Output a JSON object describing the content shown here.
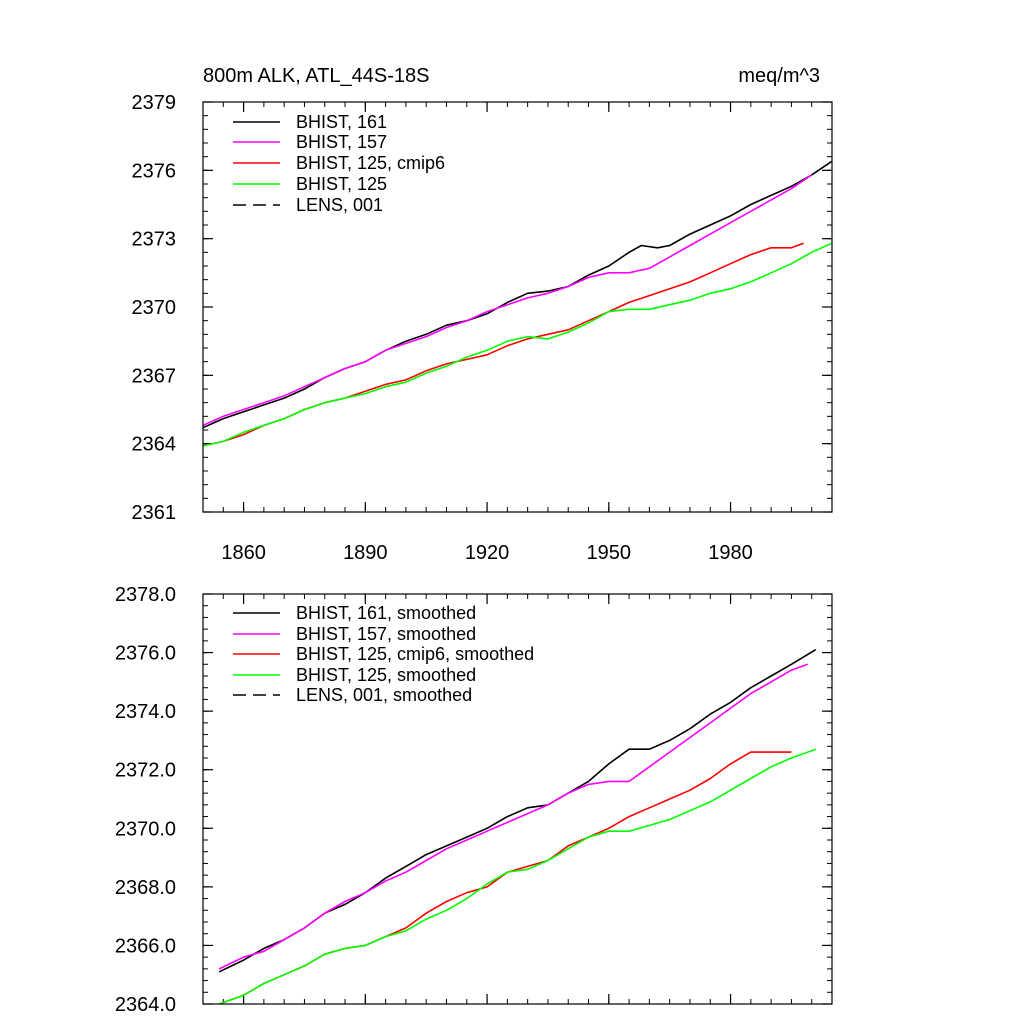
{
  "chart_data": [
    {
      "type": "line",
      "title_left": "800m ALK, ATL_44S-18S",
      "title_right": "meq/m^3",
      "xlim": [
        1850,
        2005
      ],
      "ylim": [
        2361,
        2379
      ],
      "xticks": [
        1860,
        1890,
        1920,
        1950,
        1980
      ],
      "xtick_labels": [
        "1860",
        "1890",
        "1920",
        "1950",
        "1980"
      ],
      "yticks": [
        2361,
        2364,
        2367,
        2370,
        2373,
        2376,
        2379
      ],
      "ytick_labels": [
        "2361",
        "2364",
        "2367",
        "2370",
        "2373",
        "2376",
        "2379"
      ],
      "legend": [
        "BHIST, 161",
        "BHIST, 157",
        "BHIST, 125, cmip6",
        "BHIST, 125",
        "LENS, 001"
      ],
      "series": [
        {
          "name": "BHIST, 161",
          "color": "#000000",
          "dash": "solid",
          "x": [
            1850,
            1855,
            1860,
            1865,
            1870,
            1875,
            1880,
            1885,
            1890,
            1895,
            1900,
            1905,
            1910,
            1915,
            1920,
            1925,
            1930,
            1935,
            1940,
            1945,
            1950,
            1955,
            1958,
            1962,
            1965,
            1970,
            1975,
            1980,
            1985,
            1990,
            1995,
            2000,
            2005
          ],
          "y": [
            2364.7,
            2365.1,
            2365.4,
            2365.7,
            2366.0,
            2366.4,
            2366.9,
            2367.3,
            2367.6,
            2368.1,
            2368.5,
            2368.8,
            2369.2,
            2369.4,
            2369.7,
            2370.2,
            2370.6,
            2370.7,
            2370.9,
            2371.4,
            2371.8,
            2372.4,
            2372.7,
            2372.6,
            2372.7,
            2373.2,
            2373.6,
            2374.0,
            2374.5,
            2374.9,
            2375.3,
            2375.8,
            2376.4
          ]
        },
        {
          "name": "BHIST, 157",
          "color": "#ff00ff",
          "dash": "solid",
          "x": [
            1850,
            1855,
            1860,
            1865,
            1870,
            1875,
            1880,
            1885,
            1890,
            1895,
            1900,
            1905,
            1910,
            1915,
            1920,
            1925,
            1930,
            1935,
            1940,
            1945,
            1950,
            1955,
            1960,
            1965,
            1970,
            1975,
            1980,
            1985,
            1990,
            1995,
            2000
          ],
          "y": [
            2364.8,
            2365.2,
            2365.5,
            2365.8,
            2366.1,
            2366.5,
            2366.9,
            2367.3,
            2367.6,
            2368.1,
            2368.4,
            2368.7,
            2369.1,
            2369.4,
            2369.8,
            2370.1,
            2370.4,
            2370.6,
            2370.9,
            2371.3,
            2371.5,
            2371.5,
            2371.7,
            2372.2,
            2372.7,
            2373.2,
            2373.7,
            2374.2,
            2374.7,
            2375.2,
            2375.8
          ]
        },
        {
          "name": "BHIST, 125, cmip6",
          "color": "#ff0000",
          "dash": "solid",
          "x": [
            1850,
            1855,
            1860,
            1865,
            1870,
            1875,
            1880,
            1885,
            1890,
            1895,
            1900,
            1905,
            1910,
            1915,
            1920,
            1925,
            1930,
            1935,
            1940,
            1945,
            1950,
            1955,
            1960,
            1965,
            1970,
            1975,
            1980,
            1985,
            1990,
            1995,
            1998
          ],
          "y": [
            2363.9,
            2364.1,
            2364.4,
            2364.8,
            2365.1,
            2365.5,
            2365.8,
            2366.0,
            2366.3,
            2366.6,
            2366.8,
            2367.2,
            2367.5,
            2367.7,
            2367.9,
            2368.3,
            2368.6,
            2368.8,
            2369.0,
            2369.4,
            2369.8,
            2370.2,
            2370.5,
            2370.8,
            2371.1,
            2371.5,
            2371.9,
            2372.3,
            2372.6,
            2372.6,
            2372.8
          ]
        },
        {
          "name": "BHIST, 125",
          "color": "#00ff00",
          "dash": "solid",
          "x": [
            1850,
            1855,
            1860,
            1865,
            1870,
            1875,
            1880,
            1885,
            1890,
            1895,
            1900,
            1905,
            1910,
            1915,
            1920,
            1925,
            1930,
            1935,
            1940,
            1945,
            1950,
            1955,
            1960,
            1965,
            1970,
            1975,
            1980,
            1985,
            1990,
            1995,
            2000,
            2005
          ],
          "y": [
            2363.9,
            2364.1,
            2364.5,
            2364.8,
            2365.1,
            2365.5,
            2365.8,
            2366.0,
            2366.2,
            2366.5,
            2366.7,
            2367.1,
            2367.4,
            2367.8,
            2368.1,
            2368.5,
            2368.7,
            2368.6,
            2368.9,
            2369.3,
            2369.8,
            2369.9,
            2369.9,
            2370.1,
            2370.3,
            2370.6,
            2370.8,
            2371.1,
            2371.5,
            2371.9,
            2372.4,
            2372.8
          ]
        }
      ]
    },
    {
      "type": "line",
      "xlim": [
        1850,
        2005
      ],
      "ylim": [
        2364.0,
        2378.0
      ],
      "xticks": [
        1860,
        1890,
        1920,
        1950,
        1980
      ],
      "yticks": [
        2364.0,
        2366.0,
        2368.0,
        2370.0,
        2372.0,
        2374.0,
        2376.0,
        2378.0
      ],
      "ytick_labels": [
        "2364.0",
        "2366.0",
        "2368.0",
        "2370.0",
        "2372.0",
        "2374.0",
        "2376.0",
        "2378.0"
      ],
      "legend": [
        "BHIST, 161, smoothed",
        "BHIST, 157, smoothed",
        "BHIST, 125, cmip6, smoothed",
        "BHIST, 125, smoothed",
        "LENS, 001, smoothed"
      ],
      "series": [
        {
          "name": "BHIST, 161, smoothed",
          "color": "#000000",
          "dash": "solid",
          "x": [
            1854,
            1860,
            1865,
            1870,
            1875,
            1880,
            1885,
            1890,
            1895,
            1900,
            1905,
            1910,
            1915,
            1920,
            1925,
            1930,
            1935,
            1940,
            1945,
            1950,
            1955,
            1960,
            1965,
            1970,
            1975,
            1980,
            1985,
            1990,
            1995,
            2001
          ],
          "y": [
            2365.1,
            2365.5,
            2365.9,
            2366.2,
            2366.6,
            2367.1,
            2367.4,
            2367.8,
            2368.3,
            2368.7,
            2369.1,
            2369.4,
            2369.7,
            2370.0,
            2370.4,
            2370.7,
            2370.8,
            2371.2,
            2371.6,
            2372.2,
            2372.7,
            2372.7,
            2373.0,
            2373.4,
            2373.9,
            2374.3,
            2374.8,
            2375.2,
            2375.6,
            2376.1
          ]
        },
        {
          "name": "BHIST, 157, smoothed",
          "color": "#ff00ff",
          "dash": "solid",
          "x": [
            1854,
            1860,
            1865,
            1870,
            1875,
            1880,
            1885,
            1890,
            1895,
            1900,
            1905,
            1910,
            1915,
            1920,
            1925,
            1930,
            1935,
            1940,
            1945,
            1950,
            1955,
            1960,
            1965,
            1970,
            1975,
            1980,
            1985,
            1990,
            1995,
            1999
          ],
          "y": [
            2365.2,
            2365.6,
            2365.8,
            2366.2,
            2366.6,
            2367.1,
            2367.5,
            2367.8,
            2368.2,
            2368.5,
            2368.9,
            2369.3,
            2369.6,
            2369.9,
            2370.2,
            2370.5,
            2370.8,
            2371.2,
            2371.5,
            2371.6,
            2371.6,
            2372.1,
            2372.6,
            2373.1,
            2373.6,
            2374.1,
            2374.6,
            2375.0,
            2375.4,
            2375.6
          ]
        },
        {
          "name": "BHIST, 125, cmip6, smoothed",
          "color": "#ff0000",
          "dash": "solid",
          "x": [
            1854,
            1860,
            1865,
            1870,
            1875,
            1880,
            1885,
            1890,
            1895,
            1900,
            1905,
            1910,
            1915,
            1920,
            1925,
            1930,
            1935,
            1940,
            1945,
            1950,
            1955,
            1960,
            1965,
            1970,
            1975,
            1980,
            1985,
            1990,
            1995
          ],
          "y": [
            2364.0,
            2364.3,
            2364.7,
            2365.0,
            2365.3,
            2365.7,
            2365.9,
            2366.0,
            2366.3,
            2366.6,
            2367.1,
            2367.5,
            2367.8,
            2368.0,
            2368.5,
            2368.7,
            2368.9,
            2369.4,
            2369.7,
            2370.0,
            2370.4,
            2370.7,
            2371.0,
            2371.3,
            2371.7,
            2372.2,
            2372.6,
            2372.6,
            2372.6
          ]
        },
        {
          "name": "BHIST, 125, smoothed",
          "color": "#00ff00",
          "dash": "solid",
          "x": [
            1854,
            1860,
            1865,
            1870,
            1875,
            1880,
            1885,
            1890,
            1895,
            1900,
            1905,
            1910,
            1915,
            1920,
            1925,
            1930,
            1935,
            1940,
            1945,
            1950,
            1955,
            1960,
            1965,
            1970,
            1975,
            1980,
            1985,
            1990,
            1995,
            2001
          ],
          "y": [
            2364.0,
            2364.3,
            2364.7,
            2365.0,
            2365.3,
            2365.7,
            2365.9,
            2366.0,
            2366.3,
            2366.5,
            2366.9,
            2367.2,
            2367.6,
            2368.1,
            2368.5,
            2368.6,
            2368.9,
            2369.3,
            2369.7,
            2369.9,
            2369.9,
            2370.1,
            2370.3,
            2370.6,
            2370.9,
            2371.3,
            2371.7,
            2372.1,
            2372.4,
            2372.7
          ]
        }
      ]
    }
  ]
}
